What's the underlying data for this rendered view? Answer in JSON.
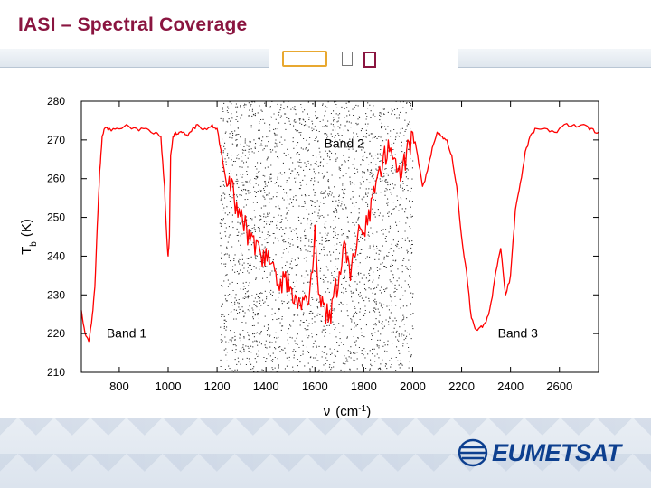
{
  "title": "IASI – Spectral Coverage",
  "logo_text": "EUMETSAT",
  "colors": {
    "title": "#8a1540",
    "series": "#ff0000",
    "accent_orange": "#e8a830",
    "logo_blue": "#0d3f8f"
  },
  "chart_data": {
    "type": "line",
    "title": "",
    "xlabel": "ν",
    "xlabel_unit": "(cm",
    "xlabel_exp": "-1",
    "xlabel_close": ")",
    "ylabel": "T",
    "ylabel_sub": "b",
    "ylabel_unit": "(K)",
    "xlim": [
      645,
      2760
    ],
    "ylim": [
      210,
      280
    ],
    "xticks": [
      800,
      1000,
      1200,
      1400,
      1600,
      1800,
      2000,
      2200,
      2400,
      2600
    ],
    "yticks": [
      210,
      220,
      230,
      240,
      250,
      260,
      270,
      280
    ],
    "grid": false,
    "annotations": [
      {
        "text": "Band 1",
        "x": 830,
        "y": 219
      },
      {
        "text": "Band 2",
        "x": 1720,
        "y": 268
      },
      {
        "text": "Band 3",
        "x": 2430,
        "y": 219
      }
    ],
    "band2_region": [
      1210,
      2000
    ],
    "series": [
      {
        "color": "#ff0000",
        "x": [
          645,
          660,
          675,
          690,
          700,
          710,
          720,
          730,
          740,
          760,
          790,
          830,
          870,
          910,
          950,
          970,
          985,
          995,
          1000,
          1005,
          1010,
          1020,
          1030,
          1045,
          1060,
          1080,
          1100,
          1120,
          1150,
          1180,
          1200,
          1220,
          1240,
          1260,
          1280,
          1300,
          1320,
          1340,
          1360,
          1380,
          1400,
          1420,
          1440,
          1460,
          1480,
          1500,
          1520,
          1540,
          1560,
          1580,
          1600,
          1620,
          1640,
          1660,
          1680,
          1700,
          1720,
          1740,
          1760,
          1780,
          1800,
          1820,
          1840,
          1860,
          1880,
          1900,
          1920,
          1940,
          1960,
          1980,
          2000,
          2020,
          2040,
          2060,
          2080,
          2100,
          2120,
          2140,
          2160,
          2180,
          2200,
          2220,
          2240,
          2260,
          2280,
          2300,
          2320,
          2340,
          2360,
          2380,
          2400,
          2420,
          2440,
          2460,
          2480,
          2500,
          2540,
          2580,
          2620,
          2660,
          2700,
          2730,
          2760
        ],
        "y": [
          226,
          220,
          218,
          225,
          232,
          248,
          262,
          271,
          273,
          273,
          273,
          274,
          273,
          273,
          272,
          271,
          258,
          244,
          240,
          245,
          266,
          271,
          272,
          272,
          272,
          271,
          273,
          274,
          273,
          274,
          273,
          266,
          258,
          260,
          254,
          252,
          248,
          246,
          244,
          240,
          242,
          238,
          236,
          234,
          236,
          232,
          230,
          228,
          230,
          232,
          248,
          230,
          228,
          226,
          232,
          236,
          244,
          238,
          240,
          248,
          246,
          252,
          258,
          262,
          266,
          270,
          265,
          262,
          264,
          270,
          272,
          266,
          258,
          262,
          268,
          272,
          271,
          270,
          266,
          258,
          245,
          236,
          224,
          221,
          222,
          223,
          228,
          236,
          242,
          230,
          235,
          252,
          259,
          267,
          271,
          273,
          273,
          272,
          274,
          274,
          274,
          273,
          272
        ]
      }
    ]
  }
}
